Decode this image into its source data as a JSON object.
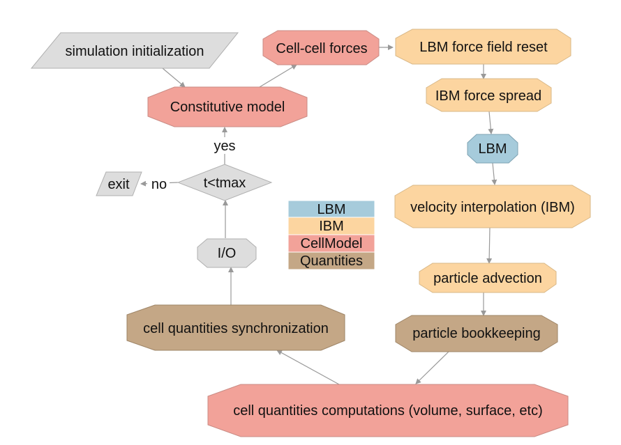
{
  "colors": {
    "lbm": "#a6cbdb",
    "ibm": "#fcd5a0",
    "cellmodel": "#f2a299",
    "quantities": "#c4a786",
    "neutral": "#dddddd",
    "edge": "#999999",
    "node_border": "#b0b0b0"
  },
  "nodes": {
    "sim_init": "simulation initialization",
    "cell_cell_forces": "Cell-cell forces",
    "lbm_force_reset": "LBM force field reset",
    "constitutive_model": "Constitutive model",
    "ibm_force_spread": "IBM force spread",
    "lbm": "LBM",
    "t_check": "t<tmax",
    "exit": "exit",
    "velocity_interp": "velocity interpolation (IBM)",
    "io": "I/O",
    "particle_advection": "particle advection",
    "particle_bookkeeping": "particle bookkeeping",
    "cell_sync": "cell quantities synchronization",
    "cell_computations": "cell quantities computations (volume, surface, etc)"
  },
  "edge_labels": {
    "yes": "yes",
    "no": "no"
  },
  "legend": {
    "items": [
      {
        "label": "LBM",
        "color": "#a6cbdb"
      },
      {
        "label": "IBM",
        "color": "#fcd5a0"
      },
      {
        "label": "CellModel",
        "color": "#f2a299"
      },
      {
        "label": "Quantities",
        "color": "#c4a786"
      }
    ]
  }
}
